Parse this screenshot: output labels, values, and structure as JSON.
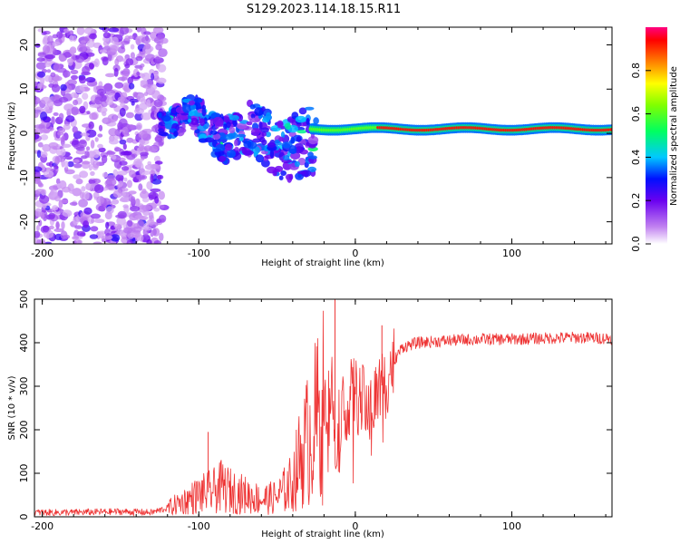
{
  "title": "S129.2023.114.18.15.R11",
  "chart_data": [
    {
      "type": "heatmap",
      "name": "spectrogram",
      "xlabel": "Height of straight line (km)",
      "ylabel": "Frequency (Hz)",
      "xlim": [
        -205,
        164
      ],
      "ylim": [
        -25,
        24
      ],
      "xticks": [
        -200,
        -100,
        0,
        100
      ],
      "yticks": [
        -20,
        -10,
        0,
        10,
        20
      ],
      "colorbar": {
        "label": "Normalized spectral amplitude",
        "range": [
          0,
          1
        ],
        "ticks": [
          "0.0",
          "0.2",
          "0.4",
          "0.6",
          "0.8"
        ]
      },
      "description_regions": [
        {
          "x_range": [
            -205,
            -122
          ],
          "freq_range": [
            -25,
            24
          ],
          "level": 0.15
        },
        {
          "x_range": [
            -122,
            -25
          ],
          "freq_center_start": 3,
          "freq_center_end": -5,
          "level": 0.35
        },
        {
          "x_range": [
            -25,
            164
          ],
          "freq_center": 1,
          "level": 0.95
        }
      ]
    },
    {
      "type": "line",
      "name": "snr",
      "xlabel": "Height of straight line (km)",
      "ylabel": "SNR (10 * v/v)",
      "xlim": [
        -205,
        164
      ],
      "ylim": [
        0,
        500
      ],
      "xticks": [
        -200,
        -100,
        0,
        100
      ],
      "yticks": [
        0,
        100,
        200,
        300,
        400,
        500
      ],
      "color": "#ee3333",
      "series": [
        {
          "name": "SNR",
          "x": [
            -205,
            -180,
            -150,
            -130,
            -120,
            -110,
            -100,
            -90,
            -85,
            -80,
            -70,
            -60,
            -50,
            -40,
            -35,
            -30,
            -25,
            -20,
            -15,
            -13,
            -10,
            -5,
            0,
            5,
            10,
            15,
            20,
            25,
            30,
            40,
            60,
            80,
            100,
            120,
            140,
            164
          ],
          "y": [
            10,
            10,
            12,
            10,
            20,
            35,
            50,
            60,
            70,
            60,
            50,
            40,
            45,
            80,
            140,
            180,
            220,
            260,
            300,
            180,
            240,
            270,
            280,
            260,
            250,
            290,
            320,
            360,
            390,
            400,
            405,
            408,
            408,
            410,
            412,
            410
          ]
        }
      ],
      "annotations": [
        {
          "x": -94,
          "y": 195,
          "note": "spike"
        },
        {
          "x": -13,
          "y": 500,
          "note": "peak"
        },
        {
          "x": 17,
          "y": 440,
          "note": "spike"
        }
      ]
    }
  ]
}
